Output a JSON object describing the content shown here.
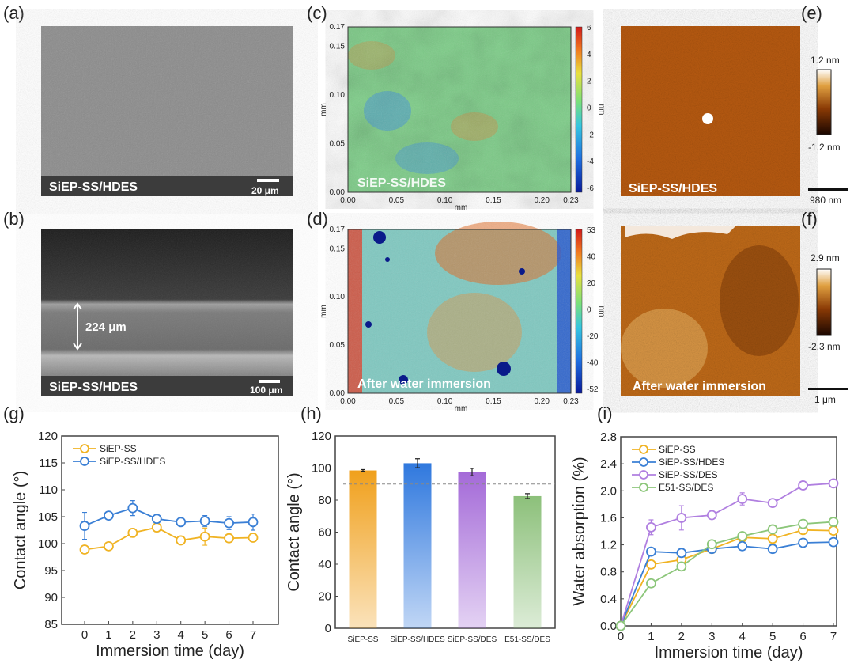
{
  "panels": {
    "a": {
      "label": "(a)",
      "caption": "SiEP-SS/HDES",
      "scale": "20 μm"
    },
    "b": {
      "label": "(b)",
      "caption": "SiEP-SS/HDES",
      "scale": "100 μm",
      "thickness": "224 μm"
    },
    "c": {
      "label": "(c)",
      "caption": "SiEP-SS/HDES",
      "xlabel": "mm",
      "ylabel": "mm",
      "unit": "nm",
      "xticks": [
        "0.00",
        "0.05",
        "0.10",
        "0.15",
        "0.20",
        "0.23"
      ],
      "yticks": [
        "0.00",
        "0.05",
        "0.10",
        "0.15",
        "0.17"
      ],
      "cbar_ticks": [
        "6",
        "4",
        "2",
        "0",
        "-2",
        "-4",
        "-6"
      ]
    },
    "d": {
      "label": "(d)",
      "caption": "After water immersion",
      "xlabel": "mm",
      "ylabel": "mm",
      "unit": "nm",
      "xticks": [
        "0.00",
        "0.05",
        "0.10",
        "0.15",
        "0.20",
        "0.23"
      ],
      "yticks": [
        "0.00",
        "0.05",
        "0.10",
        "0.15",
        "0.17"
      ],
      "cbar_ticks": [
        "53",
        "40",
        "20",
        "0",
        "-20",
        "-40",
        "-52"
      ]
    },
    "e": {
      "label": "(e)",
      "caption": "SiEP-SS/HDES",
      "max": "1.2 nm",
      "min": "-1.2 nm",
      "scale": "980 nm"
    },
    "f": {
      "label": "(f)",
      "caption": "After water immersion",
      "max": "2.9 nm",
      "min": "-2.3 nm",
      "scale": "1 μm"
    },
    "g": {
      "label": "(g)"
    },
    "h": {
      "label": "(h)"
    },
    "i": {
      "label": "(i)"
    }
  },
  "chart_data": [
    {
      "panel": "g",
      "type": "line",
      "xlabel": "Immersion time (day)",
      "ylabel": "Contact angle (°)",
      "x": [
        0,
        1,
        2,
        3,
        4,
        5,
        6,
        7
      ],
      "xlim": [
        -1,
        8
      ],
      "ylim": [
        85,
        120
      ],
      "yticks": [
        85,
        90,
        95,
        100,
        105,
        110,
        115,
        120
      ],
      "legend": "top-left",
      "series": [
        {
          "name": "SiEP-SS",
          "color": "#f0b323",
          "values": [
            98.9,
            99.5,
            102.0,
            103.0,
            100.6,
            101.3,
            101.0,
            101.1
          ],
          "errors": [
            0.3,
            0.5,
            0.8,
            0.8,
            0.3,
            1.6,
            0.3,
            0.3
          ]
        },
        {
          "name": "SiEP-SS/HDES",
          "color": "#3a7fd5",
          "values": [
            103.3,
            105.2,
            106.6,
            104.6,
            104.0,
            104.2,
            103.8,
            104.0
          ],
          "errors": [
            2.5,
            0.3,
            1.4,
            0.3,
            0.5,
            1.0,
            1.2,
            1.5
          ]
        }
      ]
    },
    {
      "panel": "h",
      "type": "bar",
      "ylabel": "Contact angle (°)",
      "ylim": [
        0,
        120
      ],
      "yticks": [
        0,
        20,
        40,
        60,
        80,
        100,
        120
      ],
      "categories": [
        "SiEP-SS",
        "SiEP-SS/HDES",
        "SiEP-SS/DES",
        "E51-SS/DES"
      ],
      "values": [
        98.5,
        103.0,
        97.5,
        82.5
      ],
      "errors": [
        0.5,
        2.8,
        2.3,
        1.5
      ],
      "colors": [
        "#f0a01c",
        "#2f78de",
        "#a46ad8",
        "#8cc07a"
      ],
      "reference_line": 90
    },
    {
      "panel": "i",
      "type": "line",
      "xlabel": "Immersion time (day)",
      "ylabel": "Water absorption (%)",
      "x": [
        0,
        1,
        2,
        3,
        4,
        5,
        6,
        7
      ],
      "xlim": [
        0,
        7
      ],
      "ylim": [
        0,
        2.8
      ],
      "yticks": [
        "0.0",
        "0.4",
        "0.8",
        "1.2",
        "1.6",
        "2.0",
        "2.4",
        "2.8"
      ],
      "legend": "top-left",
      "series": [
        {
          "name": "SiEP-SS",
          "color": "#f0b323",
          "values": [
            0,
            0.91,
            0.98,
            1.14,
            1.31,
            1.29,
            1.42,
            1.41
          ],
          "errors": [
            0,
            0.03,
            0.03,
            0.02,
            0.03,
            0.02,
            0.03,
            0.03
          ]
        },
        {
          "name": "SiEP-SS/HDES",
          "color": "#3a7fd5",
          "values": [
            0,
            1.1,
            1.08,
            1.14,
            1.18,
            1.14,
            1.23,
            1.24
          ],
          "errors": [
            0,
            0.02,
            0.03,
            0.02,
            0.02,
            0.02,
            0.02,
            0.02
          ]
        },
        {
          "name": "SiEP-SS/DES",
          "color": "#b07fe0",
          "values": [
            0,
            1.46,
            1.6,
            1.64,
            1.88,
            1.82,
            2.08,
            2.11
          ],
          "errors": [
            0,
            0.11,
            0.18,
            0.02,
            0.09,
            0.02,
            0.02,
            0.05
          ]
        },
        {
          "name": "E51-SS/DES",
          "color": "#8cc67a",
          "values": [
            0,
            0.63,
            0.88,
            1.21,
            1.33,
            1.43,
            1.51,
            1.54
          ],
          "errors": [
            0,
            0.02,
            0.02,
            0.02,
            0.02,
            0.02,
            0.02,
            0.02
          ]
        }
      ]
    }
  ]
}
